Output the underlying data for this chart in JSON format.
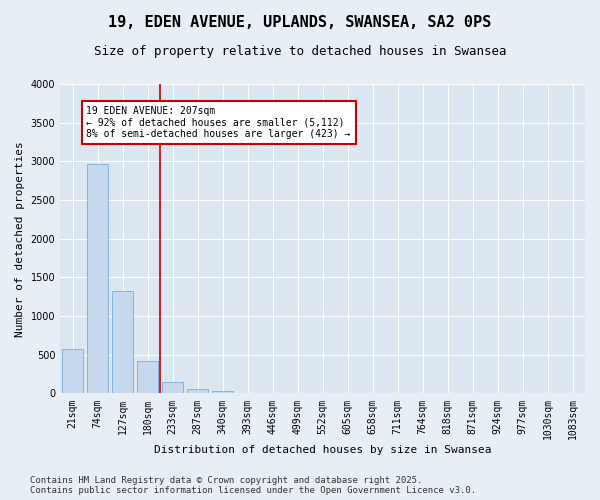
{
  "title": "19, EDEN AVENUE, UPLANDS, SWANSEA, SA2 0PS",
  "subtitle": "Size of property relative to detached houses in Swansea",
  "xlabel": "Distribution of detached houses by size in Swansea",
  "ylabel": "Number of detached properties",
  "categories": [
    "21sqm",
    "74sqm",
    "127sqm",
    "180sqm",
    "233sqm",
    "287sqm",
    "340sqm",
    "393sqm",
    "446sqm",
    "499sqm",
    "552sqm",
    "605sqm",
    "658sqm",
    "711sqm",
    "764sqm",
    "818sqm",
    "871sqm",
    "924sqm",
    "977sqm",
    "1030sqm",
    "1083sqm"
  ],
  "values": [
    570,
    2960,
    1330,
    415,
    150,
    60,
    30,
    10,
    5,
    2,
    0,
    0,
    0,
    0,
    0,
    0,
    0,
    0,
    0,
    0,
    0
  ],
  "bar_color": "#c5d8ed",
  "bar_edge_color": "#7aaed6",
  "annotation_text": "19 EDEN AVENUE: 207sqm\n← 92% of detached houses are smaller (5,112)\n8% of semi-detached houses are larger (423) →",
  "annotation_box_color": "#ffffff",
  "annotation_box_edge": "#cc0000",
  "red_line_x": 3.5,
  "ylim": [
    0,
    4000
  ],
  "yticks": [
    0,
    500,
    1000,
    1500,
    2000,
    2500,
    3000,
    3500,
    4000
  ],
  "footer": "Contains HM Land Registry data © Crown copyright and database right 2025.\nContains public sector information licensed under the Open Government Licence v3.0.",
  "bg_color": "#e8eef5",
  "plot_bg_color": "#dce6f0",
  "grid_color": "#ffffff",
  "title_fontsize": 11,
  "subtitle_fontsize": 9,
  "axis_label_fontsize": 8,
  "tick_fontsize": 7,
  "annotation_fontsize": 7,
  "footer_fontsize": 6.5
}
